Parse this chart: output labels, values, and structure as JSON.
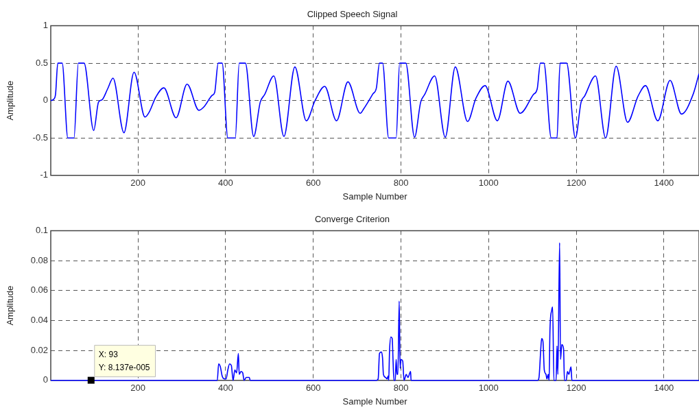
{
  "chart_data": [
    {
      "type": "line",
      "title": "Clipped Speech Signal",
      "xlabel": "Sample Number",
      "ylabel": "Amplitude",
      "xlim": [
        1,
        1480
      ],
      "xticks": [
        200,
        400,
        600,
        800,
        1000,
        1200,
        1400
      ],
      "ylim": [
        -1,
        1
      ],
      "yticks": [
        -1,
        -0.5,
        0,
        0.5,
        1
      ],
      "grid": true,
      "line_style": "solid",
      "series": [
        {
          "color": "#0000ff",
          "x": [
            1,
            8,
            12,
            17,
            27,
            40,
            54,
            64,
            77,
            99,
            110,
            118,
            131,
            143,
            168,
            191,
            216,
            225,
            241,
            259,
            287,
            312,
            339,
            351,
            369,
            375,
            383,
            392,
            405,
            422,
            431,
            445,
            464,
            479,
            489,
            510,
            533,
            558,
            584,
            604,
            626,
            653,
            679,
            707,
            715,
            736,
            744,
            751,
            758,
            772,
            789,
            797,
            811,
            831,
            845,
            854,
            877,
            901,
            924,
            952,
            971,
            992,
            1020,
            1044,
            1072,
            1102,
            1111,
            1118,
            1126,
            1143,
            1156,
            1163,
            1178,
            1198,
            1211,
            1219,
            1244,
            1267,
            1291,
            1317,
            1341,
            1358,
            1386,
            1414,
            1440,
            1467,
            1480
          ],
          "values": [
            0,
            0.02,
            0.09,
            0.5,
            0.5,
            -0.5,
            -0.5,
            0.5,
            0.5,
            -0.4,
            -0.02,
            0.01,
            0.16,
            0.3,
            -0.43,
            0.38,
            -0.22,
            -0.16,
            0.05,
            0.17,
            -0.23,
            0.22,
            -0.13,
            -0.08,
            0.07,
            0.11,
            0.5,
            0.5,
            -0.5,
            -0.5,
            0.5,
            0.5,
            -0.48,
            -0.02,
            0.08,
            0.33,
            -0.48,
            0.45,
            -0.27,
            0,
            0.19,
            -0.27,
            0.25,
            -0.17,
            -0.11,
            0.09,
            0.17,
            0.5,
            0.5,
            -0.5,
            -0.5,
            0.5,
            0.5,
            -0.49,
            -0.02,
            0.08,
            0.33,
            -0.49,
            0.45,
            -0.28,
            0.03,
            0.2,
            -0.27,
            0.26,
            -0.17,
            0.08,
            0.16,
            0.5,
            0.5,
            -0.5,
            -0.5,
            0.5,
            0.5,
            -0.5,
            -0.02,
            0.06,
            0.33,
            -0.5,
            0.46,
            -0.29,
            0.06,
            0.2,
            -0.27,
            0.27,
            -0.18,
            0.09,
            0.36
          ]
        }
      ]
    },
    {
      "type": "line",
      "title": "Converge Criterion",
      "xlabel": "Sample Number",
      "ylabel": "Amplitude",
      "xlim": [
        1,
        1480
      ],
      "xticks": [
        200,
        400,
        600,
        800,
        1000,
        1200,
        1400
      ],
      "ylim": [
        0,
        0.1
      ],
      "yticks": [
        0,
        0.02,
        0.04,
        0.06,
        0.08,
        0.1
      ],
      "grid": true,
      "line_style": "solid",
      "annotations": [
        {
          "text": "X: 93\nY: 8.137e-005",
          "x": 93,
          "y": 8.137e-05
        }
      ],
      "series": [
        {
          "color": "#0000ff",
          "x": [
            1,
            381,
            384,
            388,
            392,
            397,
            401,
            405,
            409,
            413,
            417,
            421,
            425,
            429,
            431,
            435,
            439,
            442,
            447,
            454,
            456,
            744,
            748,
            751,
            755,
            758,
            760,
            765,
            768,
            771,
            772,
            774,
            777,
            780,
            782,
            784,
            787,
            789,
            791,
            793,
            796,
            798,
            800,
            804,
            807,
            812,
            816,
            822,
            823,
            1112,
            1115,
            1119,
            1121,
            1124,
            1127,
            1131,
            1133,
            1136,
            1138,
            1140,
            1144,
            1146,
            1149,
            1154,
            1156,
            1158,
            1162,
            1164,
            1167,
            1171,
            1173,
            1177,
            1180,
            1183,
            1188,
            1190,
            1480
          ],
          "values": [
            0,
            0,
            0.011,
            0.009,
            0.003,
            0.001,
            0.001,
            0.007,
            0.011,
            0.01,
            0,
            0.007,
            0.005,
            0.018,
            0.004,
            0.006,
            0.005,
            0,
            0.002,
            0.002,
            0,
            0,
            0.001,
            0.018,
            0.019,
            0.015,
            0.004,
            0.002,
            0.001,
            0.003,
            0,
            0.02,
            0.029,
            0.028,
            0.013,
            0,
            0,
            0.014,
            0.004,
            0.004,
            0.053,
            0.008,
            0.014,
            0.013,
            0,
            0.004,
            0.002,
            0.006,
            0,
            0,
            0.002,
            0.021,
            0.028,
            0.026,
            0.007,
            0.004,
            0.001,
            0.004,
            0,
            0.034,
            0.047,
            0.049,
            0,
            0,
            0.023,
            0.004,
            0.092,
            0.014,
            0.024,
            0.021,
            0,
            0,
            0.006,
            0.004,
            0.009,
            0,
            0
          ]
        }
      ]
    }
  ]
}
